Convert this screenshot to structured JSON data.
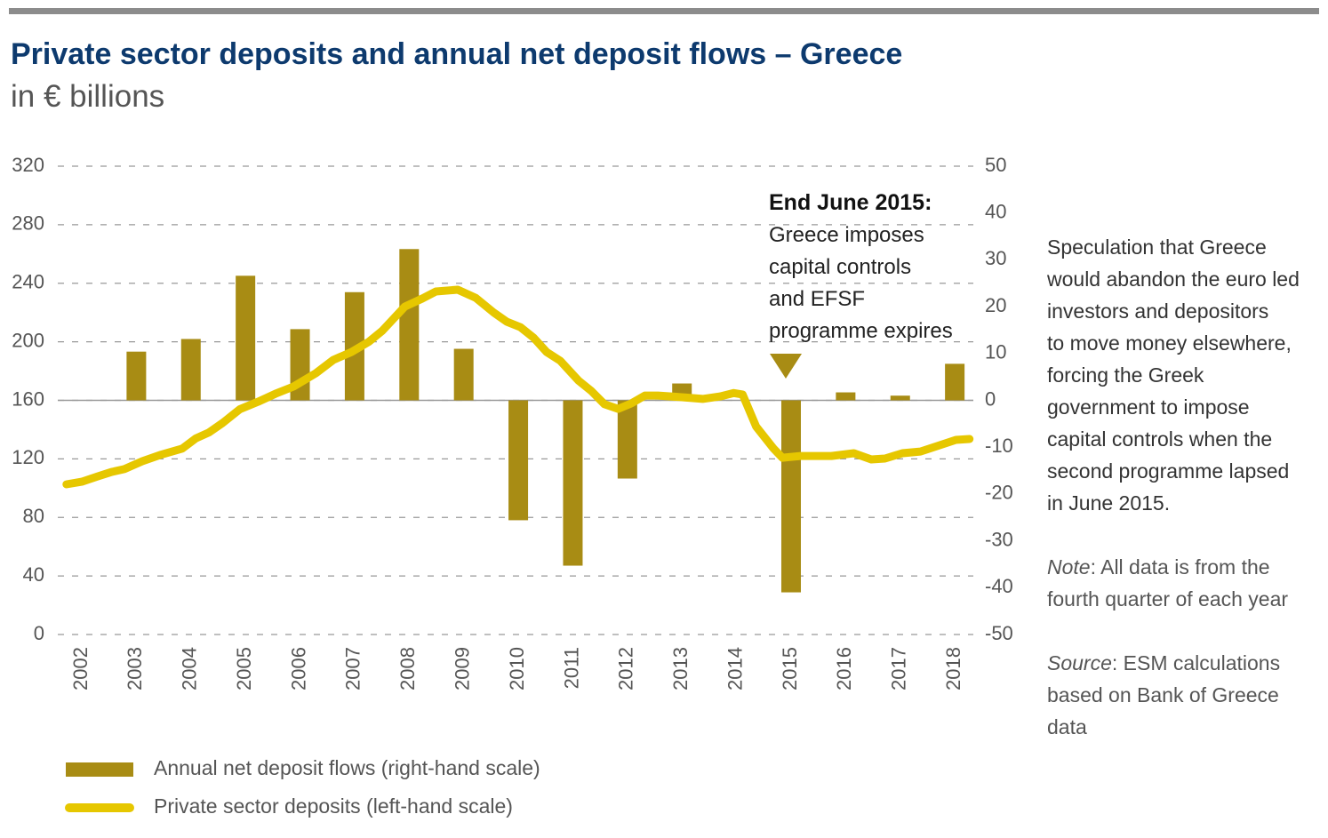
{
  "chart_data": {
    "type": "bar_line",
    "title": "Private sector deposits and annual net deposit flows – Greece",
    "subtitle": "in € billions",
    "categories": [
      "2002",
      "2003",
      "2004",
      "2005",
      "2006",
      "2007",
      "2008",
      "2009",
      "2010",
      "2011",
      "2012",
      "2013",
      "2014",
      "2015",
      "2016",
      "2017",
      "2018"
    ],
    "xlim": [
      2001.56,
      2018.34
    ],
    "ylim": [
      0,
      320
    ],
    "yticks": [
      0,
      40,
      80,
      120,
      160,
      200,
      240,
      280,
      320
    ],
    "y2lim": [
      -50,
      50
    ],
    "y2ticks": [
      -50,
      -40,
      -30,
      -20,
      -10,
      0,
      10,
      20,
      30,
      40,
      50
    ],
    "grid": true,
    "series": [
      {
        "name": "Annual net deposit flows (right-hand scale)",
        "type": "bar",
        "axis": "y2",
        "color": "#a88c14",
        "values": [
          null,
          10.4,
          13.1,
          26.6,
          15.2,
          23.1,
          32.3,
          11.0,
          -25.6,
          -35.3,
          -16.7,
          3.6,
          0,
          -41,
          1.7,
          1.0,
          7.8
        ]
      },
      {
        "name": "Private sector deposits (left-hand scale)",
        "type": "line",
        "axis": "y",
        "color": "#e6c700",
        "x": [
          2001.72,
          2002.0,
          2002.29,
          2002.54,
          2002.78,
          2003.11,
          2003.43,
          2003.84,
          2004.09,
          2004.33,
          2004.58,
          2004.9,
          2005.23,
          2005.55,
          2005.88,
          2006.29,
          2006.61,
          2006.94,
          2007.26,
          2007.51,
          2007.92,
          2008.24,
          2008.49,
          2008.89,
          2009.22,
          2009.55,
          2009.79,
          2010.04,
          2010.28,
          2010.52,
          2010.77,
          2011.1,
          2011.34,
          2011.58,
          2011.83,
          2012.07,
          2012.32,
          2012.56,
          2013.05,
          2013.38,
          2013.7,
          2013.95,
          2014.11,
          2014.36,
          2014.68,
          2014.84,
          2015.17,
          2015.74,
          2016.15,
          2016.47,
          2016.72,
          2017.04,
          2017.37,
          2017.78,
          2018.02,
          2018.27
        ],
        "values": [
          102.6,
          104.4,
          108,
          111,
          113,
          118.4,
          122.6,
          127,
          134,
          138,
          144.5,
          154,
          159,
          164.5,
          169.4,
          178.5,
          187.6,
          193,
          200,
          207.6,
          224,
          229.5,
          234.4,
          235.6,
          230,
          220,
          213.7,
          210,
          202.8,
          193,
          187,
          173.6,
          166.4,
          157.3,
          154.2,
          157.9,
          163.3,
          163.3,
          162,
          161,
          162.7,
          165,
          164,
          142,
          127,
          120.8,
          122,
          122,
          123.9,
          119.6,
          120.2,
          123.9,
          125,
          130,
          133,
          133.6
        ]
      }
    ],
    "annotation": {
      "title": "End June 2015:",
      "lines": [
        "Greece imposes",
        "capital controls",
        "and EFSF",
        "programme expires"
      ]
    },
    "sidebar": {
      "lines": [
        "Speculation that Greece",
        "would abandon the euro led",
        "investors and depositors",
        "to move money elsewhere,",
        "forcing the Greek",
        "government to impose",
        "capital controls when the",
        "second programme lapsed",
        "in June 2015."
      ],
      "note": {
        "label": "Note",
        "lines": [
          ": All data is from the",
          "fourth quarter of each year"
        ]
      },
      "source": {
        "label": "Source",
        "lines": [
          ": ESM calculations",
          "based on Bank of Greece",
          "data"
        ]
      }
    }
  }
}
